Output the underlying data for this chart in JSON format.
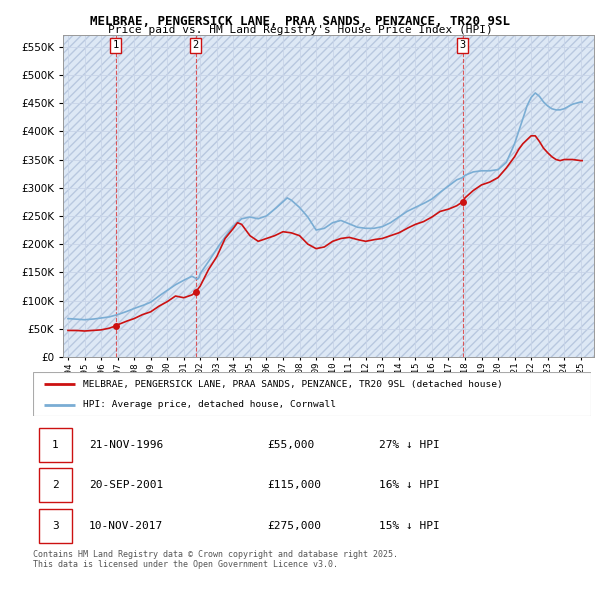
{
  "title": "MELBRAE, PENGERSICK LANE, PRAA SANDS, PENZANCE, TR20 9SL",
  "subtitle": "Price paid vs. HM Land Registry's House Price Index (HPI)",
  "ylim": [
    0,
    570000
  ],
  "xlim_start": 1993.7,
  "xlim_end": 2025.8,
  "hpi_color": "#7aadd4",
  "price_color": "#cc1111",
  "bg_color": "#dde8f5",
  "legend_entries": [
    "MELBRAE, PENGERSICK LANE, PRAA SANDS, PENZANCE, TR20 9SL (detached house)",
    "HPI: Average price, detached house, Cornwall"
  ],
  "transactions": [
    {
      "num": 1,
      "date": "21-NOV-1996",
      "price": 55000,
      "hpi_diff": "27% ↓ HPI",
      "x": 1996.88
    },
    {
      "num": 2,
      "date": "20-SEP-2001",
      "price": 115000,
      "hpi_diff": "16% ↓ HPI",
      "x": 2001.72
    },
    {
      "num": 3,
      "date": "10-NOV-2017",
      "price": 275000,
      "hpi_diff": "15% ↓ HPI",
      "x": 2017.86
    }
  ],
  "footnote": "Contains HM Land Registry data © Crown copyright and database right 2025.\nThis data is licensed under the Open Government Licence v3.0."
}
